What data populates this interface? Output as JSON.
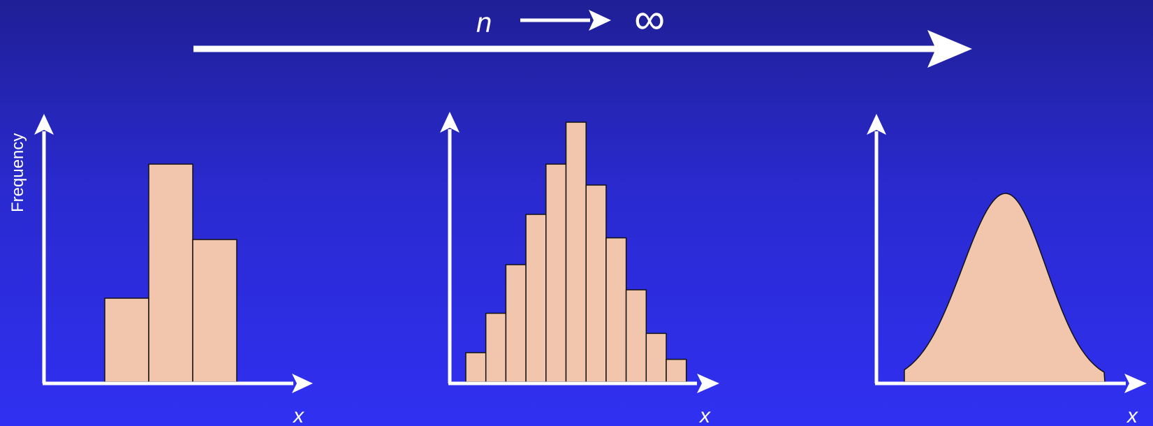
{
  "top": {
    "n_label": "n",
    "infinity_symbol": "∞"
  },
  "panel_left": {
    "ylabel": "Frequency",
    "xlabel": "x",
    "bars": [
      1,
      2.6,
      1.7
    ]
  },
  "panel_mid": {
    "xlabel": "x",
    "bars": [
      0.35,
      0.82,
      1.4,
      2.0,
      2.6,
      3.1,
      2.35,
      1.72,
      1.1,
      0.58,
      0.27
    ]
  },
  "panel_right": {
    "xlabel": "x"
  },
  "colors": {
    "bar_fill": "#f2c6ad",
    "axis": "#ffffff",
    "bar_stroke": "#111111"
  }
}
